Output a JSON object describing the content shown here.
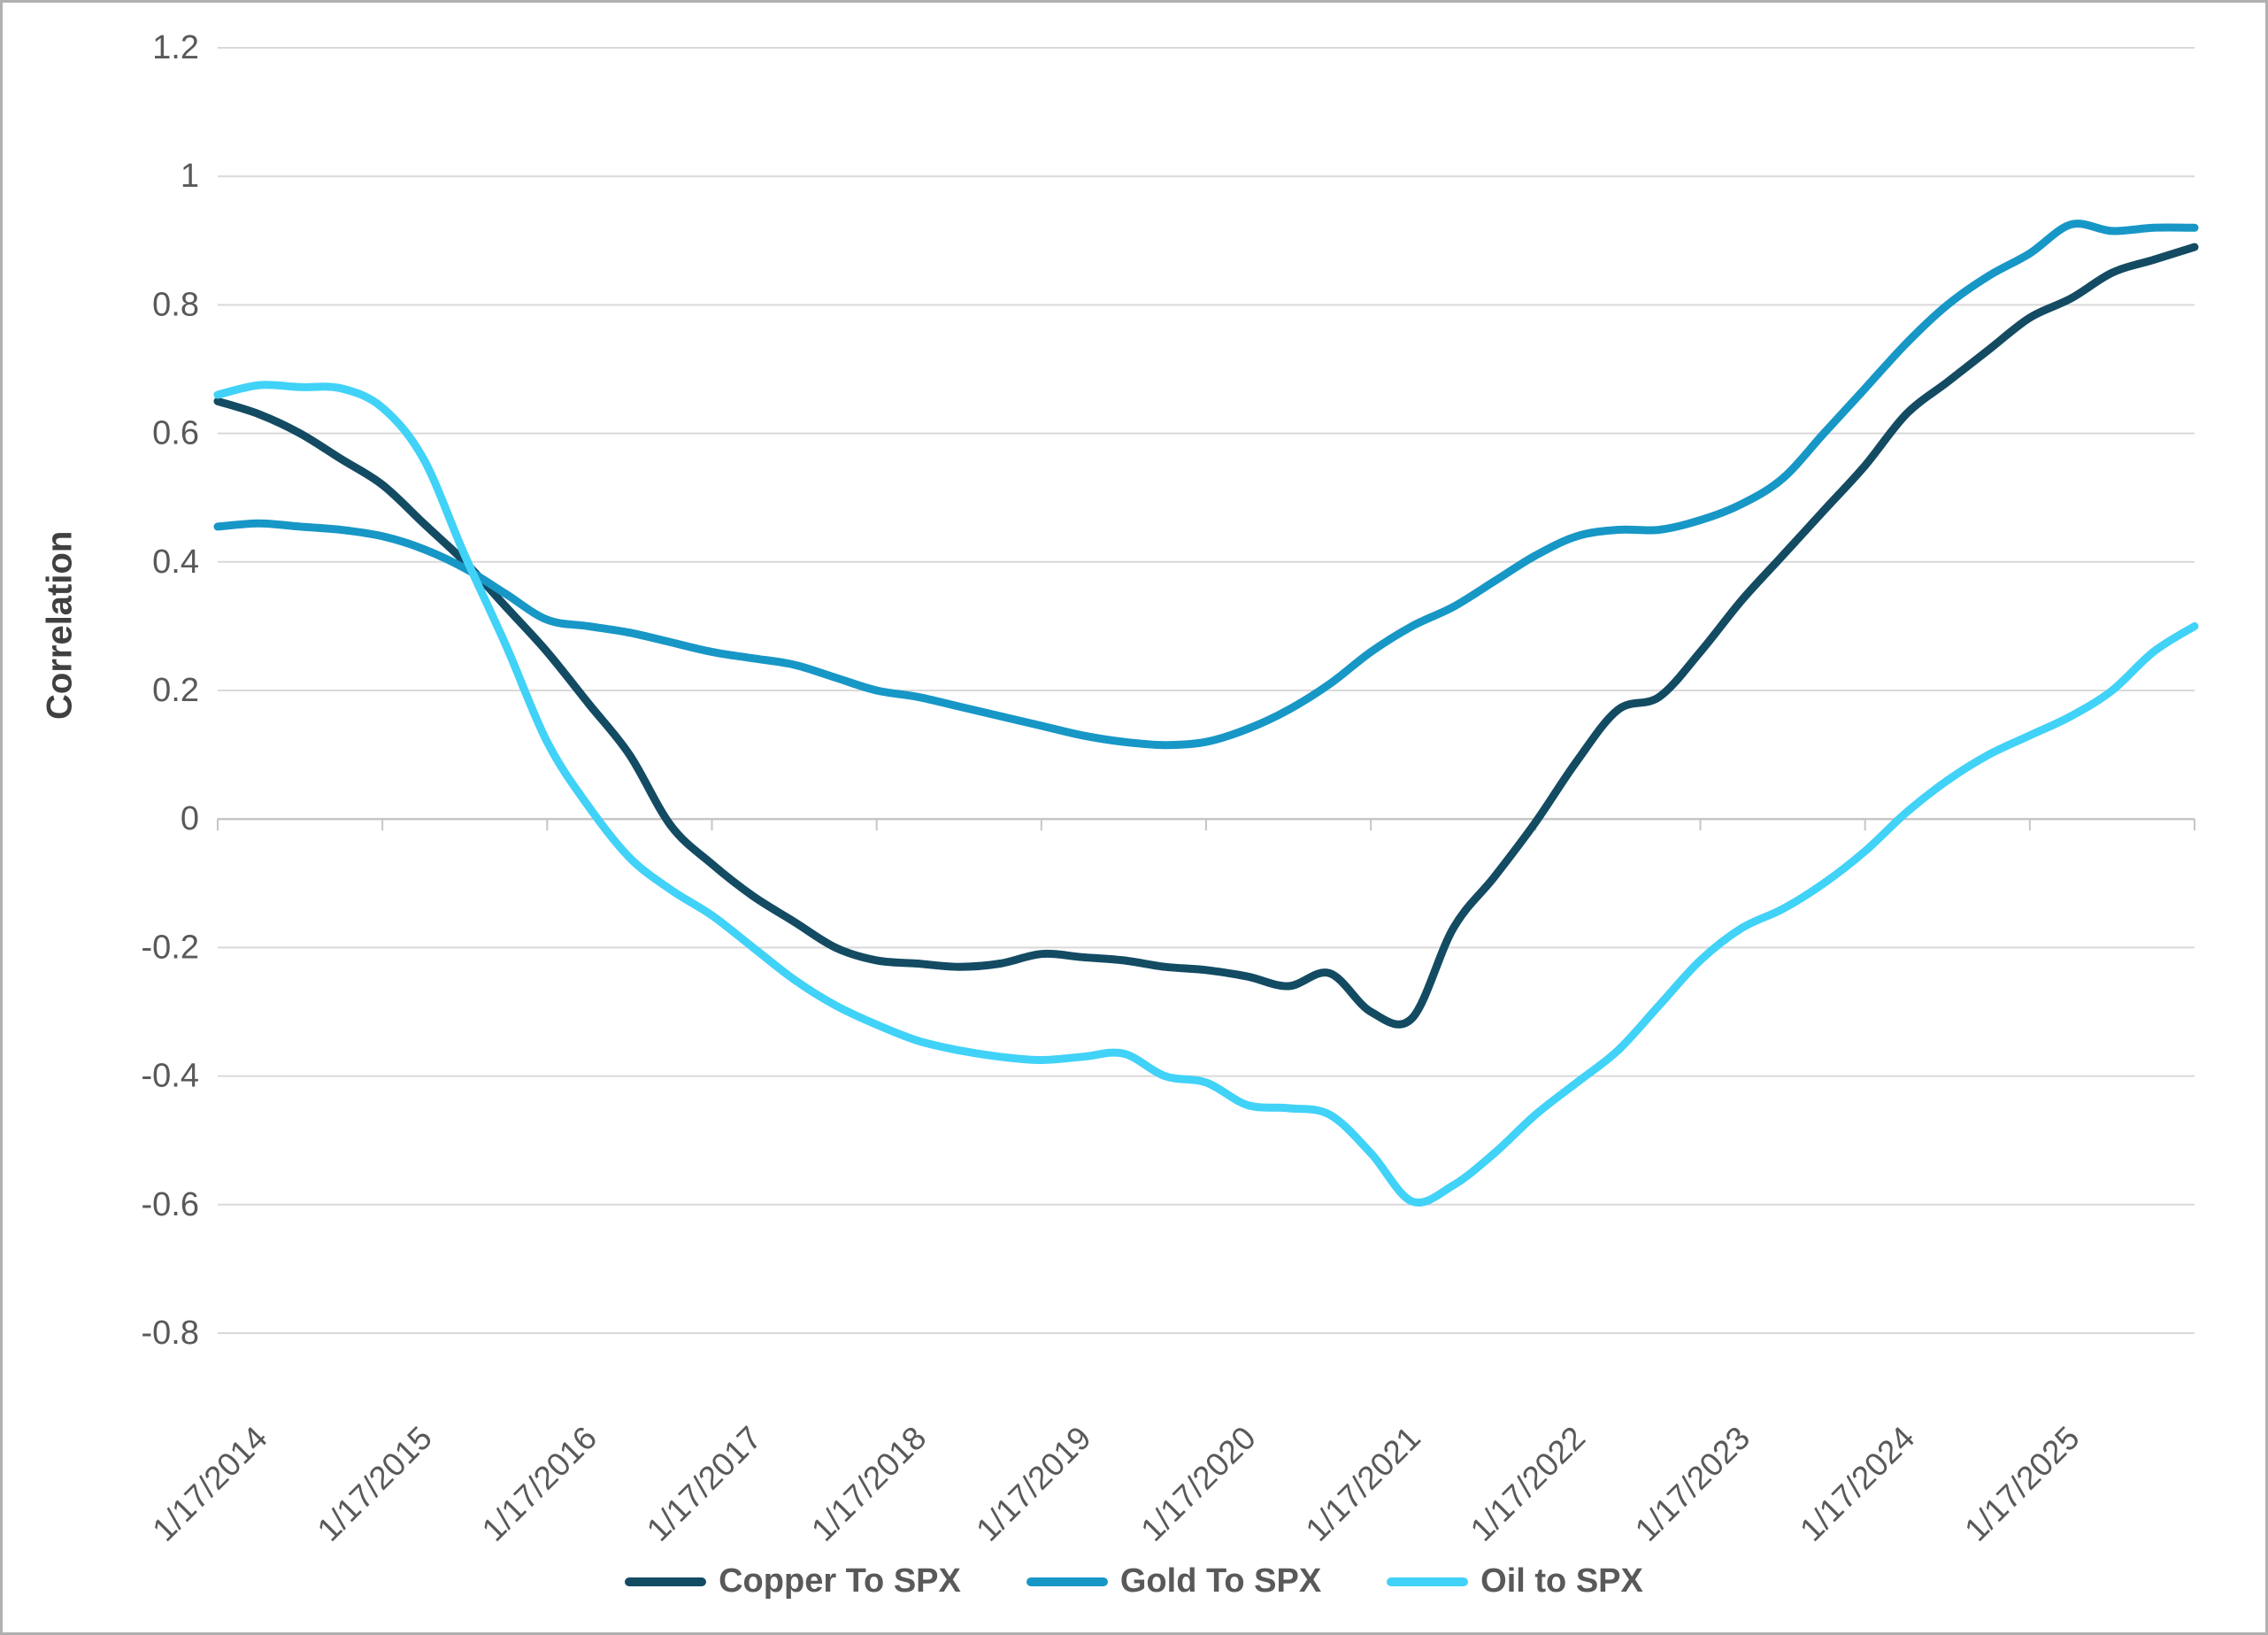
{
  "y_axis_title": "Correlation",
  "legend": {
    "items": [
      {
        "label": "Copper To SPX",
        "color": "#134b63"
      },
      {
        "label": "Gold To SPX",
        "color": "#1797c6"
      },
      {
        "label": "Oil to SPX",
        "color": "#41d2f7"
      }
    ]
  },
  "chart_data": {
    "type": "line",
    "title": "",
    "xlabel": "",
    "ylabel": "Correlation",
    "ylim": [
      -0.8,
      1.2
    ],
    "ytick_step": 0.2,
    "y_tick_labels": [
      "1.2",
      "1",
      "0.8",
      "0.6",
      "0.4",
      "0.2",
      "0",
      "-0.2",
      "-0.4",
      "-0.6",
      "-0.8"
    ],
    "x_tick_labels": [
      "1/17/2014",
      "1/17/2015",
      "1/17/2016",
      "1/17/2017",
      "1/17/2018",
      "1/17/2019",
      "1/17/2020",
      "1/17/2021",
      "1/17/2022",
      "1/17/2023",
      "1/17/2024",
      "1/17/2025"
    ],
    "x_domain": [
      2014,
      2026
    ],
    "grid": true,
    "legend_position": "bottom",
    "grid_color": "#d9d9d9",
    "axis_color": "#c6c6c6",
    "tick_label_color": "#595959",
    "x": [
      2014.0,
      2014.25,
      2014.5,
      2014.75,
      2015.0,
      2015.25,
      2015.5,
      2015.75,
      2016.0,
      2016.25,
      2016.5,
      2016.75,
      2017.0,
      2017.25,
      2017.5,
      2017.75,
      2018.0,
      2018.25,
      2018.5,
      2018.75,
      2019.0,
      2019.25,
      2019.5,
      2019.75,
      2020.0,
      2020.25,
      2020.5,
      2020.75,
      2021.0,
      2021.25,
      2021.5,
      2021.75,
      2022.0,
      2022.25,
      2022.5,
      2022.75,
      2023.0,
      2023.25,
      2023.5,
      2023.75,
      2024.0,
      2024.25,
      2024.5,
      2024.75,
      2025.0,
      2025.25,
      2025.5,
      2025.75,
      2026.0
    ],
    "series": [
      {
        "name": "Copper To SPX",
        "color": "#134b63",
        "values": [
          0.65,
          0.63,
          0.6,
          0.56,
          0.52,
          0.46,
          0.4,
          0.33,
          0.26,
          0.18,
          0.1,
          -0.01,
          -0.07,
          -0.12,
          -0.16,
          -0.2,
          -0.22,
          -0.225,
          -0.23,
          -0.225,
          -0.21,
          -0.215,
          -0.22,
          -0.23,
          -0.235,
          -0.245,
          -0.26,
          -0.24,
          -0.3,
          -0.31,
          -0.17,
          -0.09,
          -0.005,
          0.09,
          0.17,
          0.19,
          0.26,
          0.34,
          0.41,
          0.48,
          0.55,
          0.63,
          0.68,
          0.73,
          0.78,
          0.81,
          0.85,
          0.87,
          0.89
        ]
      },
      {
        "name": "Gold To SPX",
        "color": "#1797c6",
        "values": [
          0.455,
          0.46,
          0.455,
          0.45,
          0.44,
          0.42,
          0.39,
          0.35,
          0.31,
          0.3,
          0.29,
          0.275,
          0.26,
          0.25,
          0.24,
          0.22,
          0.2,
          0.19,
          0.175,
          0.16,
          0.145,
          0.13,
          0.12,
          0.115,
          0.12,
          0.14,
          0.17,
          0.21,
          0.26,
          0.3,
          0.33,
          0.37,
          0.41,
          0.44,
          0.45,
          0.45,
          0.465,
          0.49,
          0.53,
          0.6,
          0.67,
          0.74,
          0.8,
          0.845,
          0.88,
          0.925,
          0.915,
          0.92,
          0.92
        ]
      },
      {
        "name": "Oil to SPX",
        "color": "#41d2f7",
        "values": [
          0.66,
          0.675,
          0.672,
          0.67,
          0.64,
          0.56,
          0.41,
          0.27,
          0.12,
          0.02,
          -0.06,
          -0.11,
          -0.15,
          -0.2,
          -0.25,
          -0.29,
          -0.32,
          -0.345,
          -0.36,
          -0.37,
          -0.375,
          -0.37,
          -0.365,
          -0.4,
          -0.41,
          -0.445,
          -0.45,
          -0.46,
          -0.52,
          -0.595,
          -0.57,
          -0.52,
          -0.46,
          -0.41,
          -0.36,
          -0.29,
          -0.22,
          -0.17,
          -0.14,
          -0.1,
          -0.05,
          0.01,
          0.06,
          0.1,
          0.13,
          0.16,
          0.2,
          0.26,
          0.3
        ]
      }
    ]
  }
}
